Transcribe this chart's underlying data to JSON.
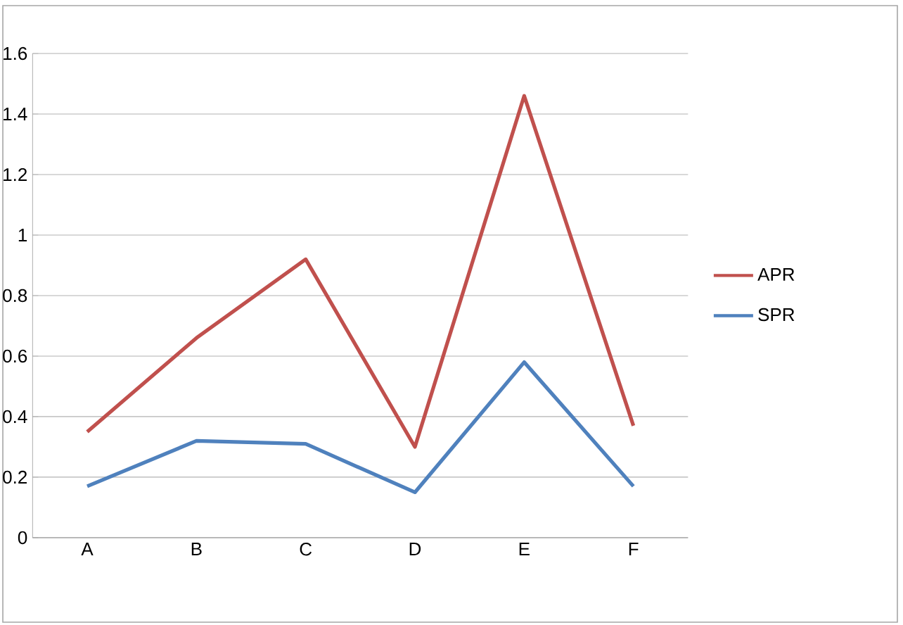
{
  "chart_data": {
    "type": "line",
    "categories": [
      "A",
      "B",
      "C",
      "D",
      "E",
      "F"
    ],
    "series": [
      {
        "name": "APR",
        "color": "#c0504d",
        "values": [
          0.35,
          0.66,
          0.92,
          0.3,
          1.46,
          0.37
        ]
      },
      {
        "name": "SPR",
        "color": "#4f81bd",
        "values": [
          0.17,
          0.32,
          0.31,
          0.15,
          0.58,
          0.17
        ]
      }
    ],
    "ylim": [
      0,
      1.6
    ],
    "yticks": [
      0,
      0.2,
      0.4,
      0.6,
      0.8,
      1,
      1.2,
      1.4,
      1.6
    ],
    "grid": "y",
    "legend": "right",
    "marker": "none",
    "line_style": "solid"
  }
}
